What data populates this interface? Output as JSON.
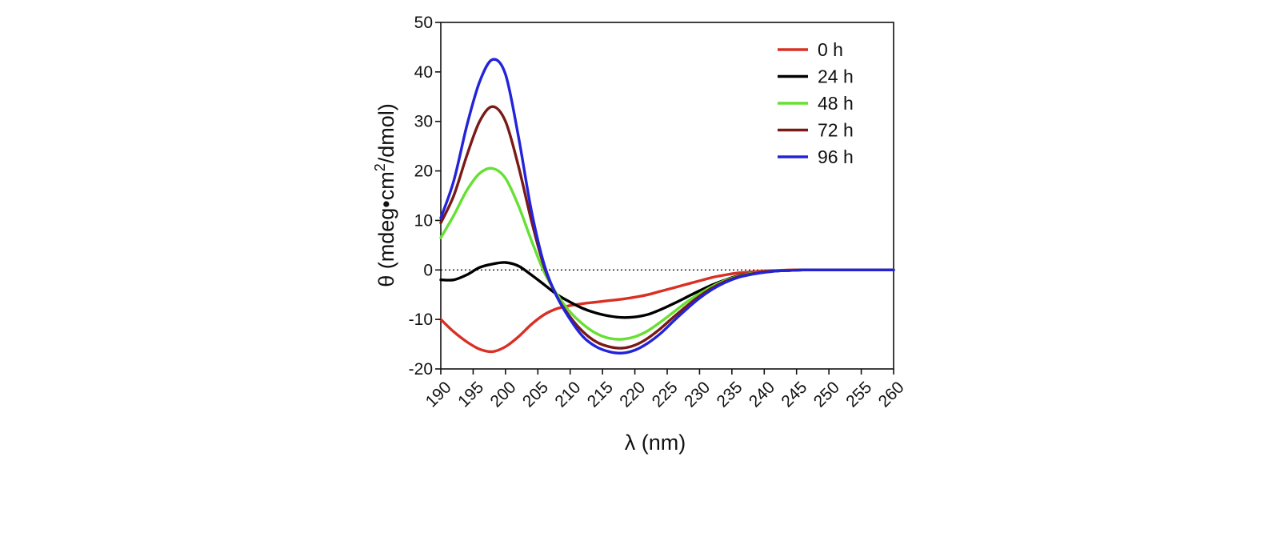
{
  "chart_data": {
    "type": "line",
    "xlabel": "λ (nm)",
    "ylabel_main": "θ (mdeg•cm",
    "ylabel_sup": "2",
    "ylabel_tail": "/dmol)",
    "xlim": [
      190,
      260
    ],
    "ylim": [
      -20,
      50
    ],
    "xticks": [
      190,
      195,
      200,
      205,
      210,
      215,
      220,
      225,
      230,
      235,
      240,
      245,
      250,
      255,
      260
    ],
    "yticks": [
      -20,
      -10,
      0,
      10,
      20,
      30,
      40,
      50
    ],
    "zero_reference_line": true,
    "grid": false,
    "legend_position": "top-right",
    "x": [
      190,
      192,
      194,
      196,
      198,
      200,
      202,
      204,
      206,
      208,
      210,
      212,
      214,
      216,
      218,
      220,
      222,
      224,
      226,
      228,
      230,
      232,
      234,
      236,
      238,
      240,
      242,
      244,
      246,
      248,
      250,
      252,
      254,
      256,
      258,
      260
    ],
    "series": [
      {
        "name": "0 h",
        "color": "#d93025",
        "values": [
          -10,
          -12.5,
          -14.5,
          -16,
          -16.5,
          -15.5,
          -13.5,
          -11,
          -9,
          -7.8,
          -7.2,
          -6.8,
          -6.5,
          -6.2,
          -5.9,
          -5.5,
          -5,
          -4.3,
          -3.6,
          -2.9,
          -2.2,
          -1.5,
          -1,
          -0.6,
          -0.4,
          -0.2,
          -0.1,
          0,
          0,
          0,
          0,
          0,
          0,
          0,
          0,
          0
        ]
      },
      {
        "name": "24 h",
        "color": "#000000",
        "values": [
          -2,
          -2,
          -1,
          0.5,
          1.2,
          1.5,
          0.8,
          -1,
          -3,
          -5,
          -6.5,
          -7.8,
          -8.7,
          -9.3,
          -9.6,
          -9.5,
          -9,
          -8,
          -6.8,
          -5.5,
          -4.2,
          -3,
          -2,
          -1.2,
          -0.7,
          -0.4,
          -0.2,
          -0.1,
          0,
          0,
          0,
          0,
          0,
          0,
          0,
          0
        ]
      },
      {
        "name": "48 h",
        "color": "#66e033",
        "values": [
          6.5,
          11,
          16,
          19.5,
          20.5,
          18.5,
          13,
          6,
          -0.5,
          -5,
          -8.5,
          -11,
          -12.8,
          -13.8,
          -14,
          -13.5,
          -12.3,
          -10.5,
          -8.5,
          -6.5,
          -4.8,
          -3.3,
          -2.1,
          -1.3,
          -0.7,
          -0.4,
          -0.2,
          -0.1,
          0,
          0,
          0,
          0,
          0,
          0,
          0,
          0
        ]
      },
      {
        "name": "72 h",
        "color": "#7a1a16",
        "values": [
          9.5,
          15,
          23,
          30,
          33,
          30,
          21,
          10,
          0.5,
          -5.5,
          -9.5,
          -12.5,
          -14.5,
          -15.5,
          -15.8,
          -15.2,
          -13.8,
          -11.8,
          -9.5,
          -7.3,
          -5.3,
          -3.6,
          -2.3,
          -1.4,
          -0.8,
          -0.4,
          -0.2,
          -0.1,
          0,
          0,
          0,
          0,
          0,
          0,
          0,
          0
        ]
      },
      {
        "name": "96 h",
        "color": "#2323d9",
        "values": [
          10.5,
          18,
          29,
          38,
          42.5,
          39.5,
          27,
          12,
          1,
          -5.5,
          -10,
          -13.5,
          -15.5,
          -16.5,
          -16.8,
          -16.2,
          -14.8,
          -12.8,
          -10.3,
          -7.9,
          -5.7,
          -3.9,
          -2.5,
          -1.5,
          -0.9,
          -0.5,
          -0.2,
          -0.1,
          0,
          0,
          0,
          0,
          0,
          0,
          0,
          0
        ]
      }
    ]
  }
}
